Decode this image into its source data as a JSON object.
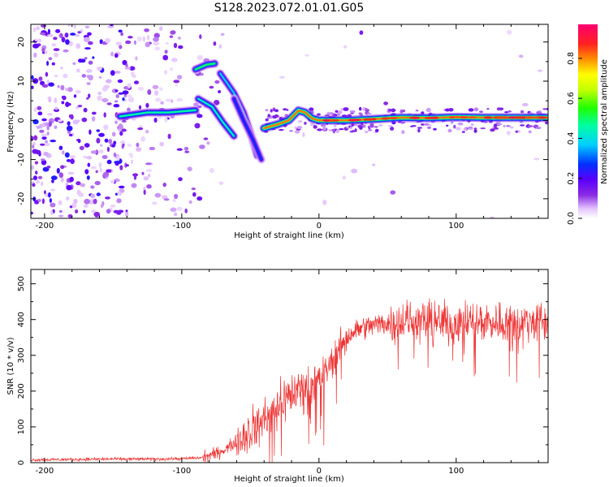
{
  "figure": {
    "title": "S128.2023.072.01.01.G05"
  },
  "chart_data": [
    {
      "type": "heatmap",
      "xlabel": "Height of straight line (km)",
      "ylabel": "Frequency (Hz)",
      "xlim": [
        -210,
        167
      ],
      "ylim": [
        -25,
        24.5
      ],
      "xticks": [
        -200,
        -100,
        0,
        100
      ],
      "yticks": [
        -20,
        -10,
        0,
        10,
        20
      ],
      "colorbar": {
        "label": "Normalized spectral amplitude",
        "range": [
          0,
          0.97
        ],
        "ticks": [
          0.0,
          0.2,
          0.4,
          0.6,
          0.8
        ]
      },
      "ridges": [
        {
          "points": [
            [
              -145,
              1
            ],
            [
              -125,
              2
            ],
            [
              -110,
              2
            ],
            [
              -100,
              2.3
            ],
            [
              -90,
              2.6
            ]
          ],
          "amplitude": 0.35
        },
        {
          "points": [
            [
              -90,
              13
            ],
            [
              -82,
              14.2
            ],
            [
              -76,
              14.5
            ]
          ],
          "amplitude": 0.38
        },
        {
          "points": [
            [
              -88,
              5.5
            ],
            [
              -78,
              3.5
            ],
            [
              -70,
              -0.5
            ],
            [
              -62,
              -4
            ]
          ],
          "amplitude": 0.33
        },
        {
          "points": [
            [
              -72,
              12
            ],
            [
              -62,
              7
            ],
            [
              -55,
              2
            ],
            [
              -50,
              -3
            ],
            [
              -45,
              -9
            ]
          ],
          "amplitude": 0.28
        },
        {
          "points": [
            [
              -62,
              5.5
            ],
            [
              -55,
              0
            ],
            [
              -48,
              -5
            ],
            [
              -42,
              -10
            ]
          ],
          "amplitude": 0.2
        },
        {
          "points": [
            [
              -40,
              -2
            ],
            [
              -30,
              -1
            ],
            [
              -22,
              0
            ],
            [
              -15,
              2.5
            ],
            [
              -10,
              2
            ],
            [
              -5,
              0.5
            ],
            [
              0,
              0
            ],
            [
              20,
              0
            ],
            [
              40,
              0.3
            ],
            [
              60,
              0.7
            ],
            [
              80,
              0.6
            ],
            [
              100,
              0.8
            ],
            [
              120,
              0.7
            ],
            [
              140,
              0.7
            ],
            [
              167,
              0.7
            ]
          ],
          "amplitude": 0.62
        }
      ]
    },
    {
      "type": "line",
      "xlabel": "Height of straight line (km)",
      "ylabel": "SNR (10 * v/v)",
      "xlim": [
        -210,
        167
      ],
      "ylim": [
        0,
        540
      ],
      "xticks": [
        -200,
        -100,
        0,
        100
      ],
      "yticks": [
        0,
        100,
        200,
        300,
        400,
        500
      ],
      "color": "#ee3333",
      "series": [
        {
          "x": [
            -210,
            -180,
            -150,
            -120,
            -100,
            -85,
            -75,
            -65,
            -55,
            -45,
            -35,
            -25,
            -15,
            -10,
            -5,
            0,
            5,
            10,
            15,
            20,
            25,
            30,
            40,
            50,
            60,
            70,
            80,
            90,
            100,
            110,
            120,
            130,
            140,
            150,
            160,
            167
          ],
          "values": [
            8,
            9,
            10,
            10,
            11,
            14,
            25,
            45,
            75,
            105,
            140,
            180,
            205,
            215,
            220,
            235,
            255,
            285,
            320,
            350,
            365,
            375,
            385,
            390,
            395,
            395,
            395,
            392,
            392,
            393,
            395,
            393,
            392,
            392,
            393,
            395
          ]
        }
      ]
    }
  ]
}
